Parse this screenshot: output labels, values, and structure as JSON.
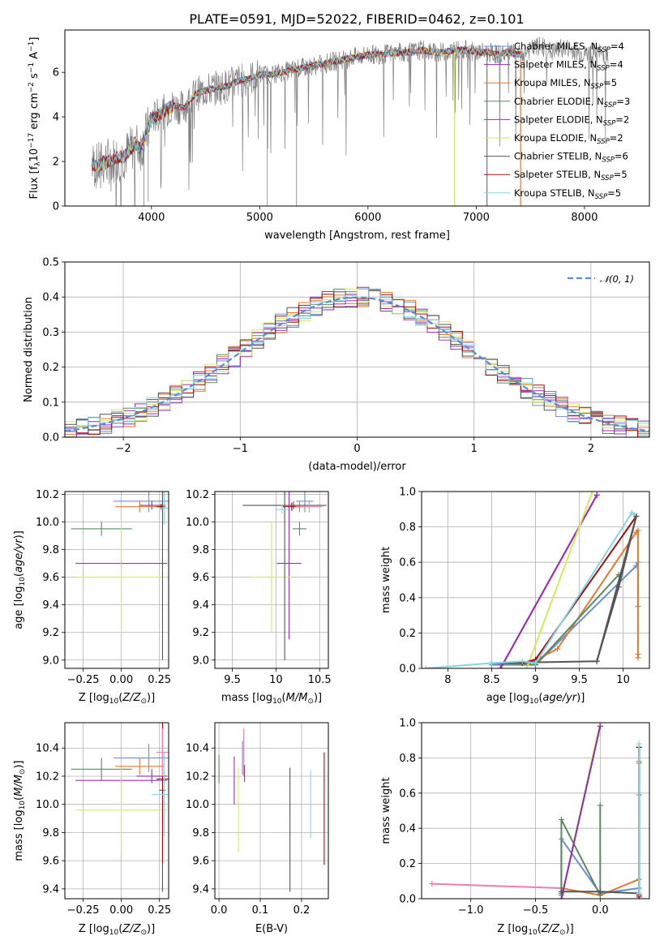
{
  "figure": {
    "title": "PLATE=0591, MJD=52022, FIBERID=0462, z=0.101"
  },
  "colors": {
    "Chabrier MILES": "#6a8fd8",
    "Salpeter MILES": "#8e2bb0",
    "Kroupa MILES": "#e07a30",
    "Chabrier ELODIE": "#5b8a60",
    "Salpeter ELODIE": "#9b2fb5",
    "Kroupa ELODIE": "#d6e85a",
    "Chabrier STELIB": "#555555",
    "Salpeter STELIB": "#a01010",
    "Kroupa STELIB": "#88d4e0",
    "gaussian": "#5b8ad6",
    "pink": "#e880b0",
    "grid": "#b0b0b0",
    "data": "#808080"
  },
  "chart_data": [
    {
      "type": "line",
      "id": "spectrum",
      "xlabel": "wavelength [Angstrom, rest frame]",
      "ylabel": "Flux [f_λ10^-17 erg cm^-2 s^-1 A^-1]",
      "xlim": [
        3200,
        8600
      ],
      "ylim": [
        0,
        7.9
      ],
      "xticks": [
        4000,
        5000,
        6000,
        7000,
        8000
      ],
      "yticks": [
        0,
        2,
        4,
        6
      ],
      "grid": false,
      "legend_position": "top-right",
      "continuum": {
        "x": [
          3450,
          3500,
          3550,
          3600,
          3650,
          3700,
          3750,
          3800,
          3850,
          3900,
          3950,
          4000,
          4100,
          4200,
          4300,
          4400,
          4500,
          4600,
          4700,
          4800,
          4900,
          5000,
          5100,
          5200,
          5300,
          5400,
          5500,
          5600,
          5700,
          5800,
          5900,
          6000,
          6100,
          6200,
          6300,
          6400,
          6500,
          6600,
          6700,
          6800,
          6900,
          7000,
          7100,
          7200,
          7300,
          7400
        ],
        "y": [
          1.9,
          1.75,
          1.95,
          2.0,
          2.1,
          2.2,
          2.25,
          2.5,
          2.8,
          2.6,
          3.2,
          3.9,
          4.2,
          4.5,
          4.4,
          5.0,
          5.2,
          5.3,
          5.4,
          5.6,
          5.7,
          5.9,
          5.9,
          6.0,
          6.1,
          6.2,
          6.3,
          6.4,
          6.5,
          6.6,
          6.7,
          6.8,
          6.8,
          6.85,
          6.9,
          6.9,
          7.0,
          6.9,
          6.9,
          7.0,
          7.0,
          6.9,
          6.9,
          6.8,
          6.9,
          6.8
        ]
      },
      "data_extra": {
        "x": [
          7400,
          7500,
          7600,
          7700,
          7800,
          7900,
          8000,
          8100,
          8200
        ],
        "y": [
          6.8,
          7.0,
          7.2,
          6.9,
          7.1,
          7.0,
          6.8,
          6.9,
          6.8
        ]
      },
      "legend": [
        {
          "name": "Chabrier MILES",
          "n_label": "N",
          "n_sub": "SSP",
          "n_value": "=4"
        },
        {
          "name": "Salpeter MILES",
          "n_label": "N",
          "n_sub": "SSP",
          "n_value": "=4"
        },
        {
          "name": "Kroupa MILES",
          "n_label": "N",
          "n_sub": "SSP",
          "n_value": "=5"
        },
        {
          "name": "Chabrier ELODIE",
          "n_label": "N",
          "n_sub": "SSP",
          "n_value": "=3"
        },
        {
          "name": "Salpeter ELODIE",
          "n_label": "N",
          "n_sub": "SSP",
          "n_value": "=2"
        },
        {
          "name": "Kroupa ELODIE",
          "n_label": "N",
          "n_sub": "SSP",
          "n_value": "=2"
        },
        {
          "name": "Chabrier STELIB",
          "n_label": "N",
          "n_sub": "SSP",
          "n_value": "=6"
        },
        {
          "name": "Salpeter STELIB",
          "n_label": "N",
          "n_sub": "SSP",
          "n_value": "=5"
        },
        {
          "name": "Kroupa STELIB",
          "n_label": "N",
          "n_sub": "SSP",
          "n_value": "=5"
        }
      ]
    },
    {
      "type": "line",
      "id": "residuals",
      "xlabel": "(data-model)/error",
      "ylabel": "Normed distribution",
      "xlim": [
        -2.5,
        2.5
      ],
      "ylim": [
        0,
        0.5
      ],
      "xticks": [
        -2,
        -1,
        0,
        1,
        2
      ],
      "yticks": [
        0.0,
        0.1,
        0.2,
        0.3,
        0.4,
        0.5
      ],
      "grid": true,
      "legend_position": "top-right",
      "legend": [
        {
          "name": "𝒩(0, 1)"
        }
      ],
      "bin_width": 0.1,
      "bins_start": -2.5,
      "series_noise_seeds": [
        1,
        2,
        3,
        4,
        5,
        6,
        7,
        8,
        9
      ]
    },
    {
      "type": "scatter",
      "id": "age-vs-Z",
      "xlabel": "Z [log10(Z/Z⊙)]",
      "ylabel": "age [log10(age/yr)]",
      "xlim": [
        -0.37,
        0.31
      ],
      "ylim": [
        8.94,
        10.22
      ],
      "xticks": [
        -0.25,
        0.0,
        0.25
      ],
      "yticks": [
        9.0,
        9.2,
        9.4,
        9.6,
        9.8,
        10.0,
        10.2
      ],
      "grid": true,
      "points": [
        {
          "model": "Chabrier MILES",
          "x": 0.18,
          "y": 10.15,
          "xerr": 0.23,
          "yerr": 0.08
        },
        {
          "model": "Salpeter MILES",
          "x": 0.2,
          "y": 10.12,
          "xerr": 0.08,
          "yerr": 0.03
        },
        {
          "model": "Kroupa MILES",
          "x": 0.12,
          "y": 10.11,
          "xerr": 0.16,
          "yerr": 0.04
        },
        {
          "model": "Chabrier ELODIE",
          "x": -0.13,
          "y": 9.95,
          "xerr": 0.2,
          "yerr": 0.05
        },
        {
          "model": "Salpeter ELODIE",
          "x": 0.0,
          "y": 9.7,
          "xerr": 0.3,
          "yerr": 0.02
        },
        {
          "model": "Kroupa ELODIE",
          "x": 0.0,
          "y": 9.6,
          "xerr": 0.3,
          "yerr": 0.42
        },
        {
          "model": "Chabrier STELIB",
          "x": 0.27,
          "y": 10.12,
          "xerr": 0.02,
          "yerr": 1.12
        },
        {
          "model": "Salpeter STELIB",
          "x": 0.26,
          "y": 10.11,
          "xerr": 0.03,
          "yerr": 0.02
        },
        {
          "model": "Kroupa STELIB",
          "x": 0.28,
          "y": 10.1,
          "xerr": 0.03,
          "yerr": 0.12
        }
      ]
    },
    {
      "type": "scatter",
      "id": "age-vs-mass",
      "xlabel": "mass [log10(M/M⊙)]",
      "ylabel": "",
      "xlim": [
        9.3,
        10.6
      ],
      "ylim": [
        8.94,
        10.22
      ],
      "xticks": [
        9.5,
        10.0,
        10.5
      ],
      "yticks": [
        9.0,
        9.2,
        9.4,
        9.6,
        9.8,
        10.0,
        10.2
      ],
      "grid": true,
      "points": [
        {
          "model": "Chabrier MILES",
          "x": 10.33,
          "y": 10.15,
          "xerr": 0.1,
          "yerr": 0.08
        },
        {
          "model": "Salpeter MILES",
          "x": 10.2,
          "y": 10.12,
          "xerr": 0.05,
          "yerr": 0.03
        },
        {
          "model": "Kroupa MILES",
          "x": 10.27,
          "y": 10.11,
          "xerr": 0.06,
          "yerr": 0.04
        },
        {
          "model": "Chabrier ELODIE",
          "x": 10.27,
          "y": 9.95,
          "xerr": 0.08,
          "yerr": 0.05
        },
        {
          "model": "Salpeter ELODIE",
          "x": 10.15,
          "y": 9.7,
          "xerr": 0.14,
          "yerr": 0.55
        },
        {
          "model": "Kroupa ELODIE",
          "x": 9.95,
          "y": 9.6,
          "xerr": 0.23,
          "yerr": 0.4
        },
        {
          "model": "Chabrier STELIB",
          "x": 10.1,
          "y": 10.12,
          "xerr": 0.48,
          "yerr": 1.12
        },
        {
          "model": "Salpeter STELIB",
          "x": 10.18,
          "y": 10.11,
          "xerr": 0.1,
          "yerr": 0.03
        },
        {
          "model": "Kroupa STELIB",
          "x": 10.07,
          "y": 10.09,
          "xerr": 0.07,
          "yerr": 0.03
        },
        {
          "model": "pink",
          "x": 10.38,
          "y": 10.11,
          "xerr": 0.15,
          "yerr": 0.04
        }
      ]
    },
    {
      "type": "line",
      "id": "massweight-vs-age",
      "xlabel": "age [log10(age/yr)]",
      "ylabel": "mass weight",
      "xlim": [
        7.7,
        10.3
      ],
      "ylim": [
        0,
        1.0
      ],
      "xticks": [
        8.0,
        8.5,
        9.0,
        9.5,
        10.0
      ],
      "yticks": [
        0.0,
        0.2,
        0.4,
        0.6,
        0.8,
        1.0
      ],
      "grid": true,
      "series": [
        {
          "name": "Chabrier MILES",
          "x": [
            8.5,
            9.0,
            10.15,
            10.17,
            10.17
          ],
          "y": [
            0.02,
            0.02,
            0.58,
            0.6,
            0.35
          ]
        },
        {
          "name": "Salpeter MILES",
          "x": [
            8.6,
            9.7
          ],
          "y": [
            0.0,
            0.98
          ]
        },
        {
          "name": "Kroupa MILES",
          "x": [
            8.9,
            9.25,
            10.15,
            10.17,
            10.17,
            10.17
          ],
          "y": [
            0.02,
            0.11,
            0.77,
            0.78,
            0.08,
            0.06
          ]
        },
        {
          "name": "Chabrier ELODIE",
          "x": [
            8.5,
            9.0,
            9.95
          ],
          "y": [
            0.03,
            0.02,
            0.53
          ]
        },
        {
          "name": "Salpeter ELODIE",
          "x": [
            8.6,
            9.7
          ],
          "y": [
            0.0,
            0.98
          ]
        },
        {
          "name": "Kroupa ELODIE",
          "x": [
            8.9,
            9.65
          ],
          "y": [
            0.0,
            1.0
          ]
        },
        {
          "name": "Chabrier STELIB",
          "x": [
            8.5,
            9.7,
            10.15
          ],
          "y": [
            0.03,
            0.04,
            0.86
          ]
        },
        {
          "name": "Salpeter STELIB",
          "x": [
            8.85,
            9.0,
            10.15
          ],
          "y": [
            0.03,
            0.05,
            0.86
          ]
        },
        {
          "name": "Kroupa STELIB",
          "x": [
            7.75,
            8.5,
            8.85,
            9.0,
            10.1,
            10.13
          ],
          "y": [
            0.0,
            0.03,
            0.04,
            0.03,
            0.88,
            0.87
          ]
        },
        {
          "name": "Chabrier STELIB b",
          "x": [
            9.7,
            9.95,
            10.15
          ],
          "y": [
            0.04,
            0.46,
            0.86
          ]
        }
      ]
    },
    {
      "type": "scatter",
      "id": "mass-vs-Z",
      "xlabel": "Z [log10(Z/Z⊙)]",
      "ylabel": "mass [log10(M/M⊙)]",
      "xlim": [
        -0.37,
        0.31
      ],
      "ylim": [
        9.33,
        10.58
      ],
      "xticks": [
        -0.25,
        0.0,
        0.25
      ],
      "yticks": [
        9.4,
        9.6,
        9.8,
        10.0,
        10.2,
        10.4
      ],
      "grid": true,
      "points": [
        {
          "model": "Chabrier MILES",
          "x": 0.18,
          "y": 10.33,
          "xerr": 0.23,
          "yerr": 0.1
        },
        {
          "model": "Salpeter MILES",
          "x": 0.2,
          "y": 10.2,
          "xerr": 0.1,
          "yerr": 0.05
        },
        {
          "model": "Kroupa MILES",
          "x": 0.12,
          "y": 10.27,
          "xerr": 0.16,
          "yerr": 0.06
        },
        {
          "model": "Chabrier ELODIE",
          "x": -0.13,
          "y": 10.25,
          "xerr": 0.2,
          "yerr": 0.08
        },
        {
          "model": "Salpeter ELODIE",
          "x": 0.0,
          "y": 10.17,
          "xerr": 0.3,
          "yerr": 0.02
        },
        {
          "model": "Kroupa ELODIE",
          "x": 0.0,
          "y": 9.96,
          "xerr": 0.3,
          "yerr": 0.3
        },
        {
          "model": "Chabrier STELIB",
          "x": 0.27,
          "y": 10.1,
          "xerr": 0.02,
          "yerr": 0.72
        },
        {
          "model": "Salpeter STELIB",
          "x": 0.27,
          "y": 10.18,
          "xerr": 0.04,
          "yerr": 0.6
        },
        {
          "model": "Kroupa STELIB",
          "x": 0.28,
          "y": 10.07,
          "xerr": 0.08,
          "yerr": 0.3
        },
        {
          "model": "pink",
          "x": 0.27,
          "y": 10.37,
          "xerr": 0.04,
          "yerr": 0.17
        }
      ]
    },
    {
      "type": "scatter",
      "id": "mass-vs-EBV",
      "xlabel": "E(B-V)",
      "ylabel": "",
      "xlim": [
        -0.01,
        0.265
      ],
      "ylim": [
        9.33,
        10.58
      ],
      "xticks": [
        0.0,
        0.1,
        0.2
      ],
      "yticks": [
        9.4,
        9.6,
        9.8,
        10.0,
        10.2,
        10.4
      ],
      "grid": true,
      "points": [
        {
          "model": "Chabrier ELODIE",
          "x": 0.0,
          "y": 10.25,
          "yerr": 0.1
        },
        {
          "model": "Salpeter ELODIE",
          "x": 0.037,
          "y": 10.17,
          "yerr": 0.17
        },
        {
          "model": "Kroupa ELODIE",
          "x": 0.047,
          "y": 9.96,
          "yerr": 0.3
        },
        {
          "model": "Chabrier MILES",
          "x": 0.057,
          "y": 10.33,
          "yerr": 0.12
        },
        {
          "model": "pink",
          "x": 0.06,
          "y": 10.37,
          "yerr": 0.17
        },
        {
          "model": "Salpeter MILES",
          "x": 0.062,
          "y": 10.22,
          "yerr": 0.06
        },
        {
          "model": "Chabrier STELIB",
          "x": 0.172,
          "y": 9.82,
          "yerr": 0.44
        },
        {
          "model": "Kroupa STELIB",
          "x": 0.222,
          "y": 10.0,
          "yerr": 0.24
        },
        {
          "model": "Salpeter STELIB",
          "x": 0.255,
          "y": 9.97,
          "yerr": 0.4
        }
      ]
    },
    {
      "type": "line",
      "id": "massweight-vs-Z",
      "xlabel": "Z [log10(Z/Z⊙)]",
      "ylabel": "mass weight",
      "xlim": [
        -1.38,
        0.38
      ],
      "ylim": [
        0,
        1.0
      ],
      "xticks": [
        -1.0,
        -0.5,
        0.0
      ],
      "yticks": [
        0.0,
        0.2,
        0.4,
        0.6,
        0.8,
        1.0
      ],
      "grid": true,
      "series": [
        {
          "name": "pink",
          "x": [
            -1.3,
            -0.3
          ],
          "y": [
            0.085,
            0.06
          ]
        },
        {
          "name": "Chabrier MILES",
          "x": [
            -0.3,
            -0.3,
            0.0,
            0.3,
            0.3,
            0.3
          ],
          "y": [
            0.02,
            0.34,
            0.03,
            0.06,
            0.59,
            0.86
          ]
        },
        {
          "name": "Kroupa MILES",
          "x": [
            -0.3,
            0.0,
            0.3,
            0.3,
            0.3
          ],
          "y": [
            0.06,
            0.02,
            0.11,
            0.77,
            0.78
          ]
        },
        {
          "name": "Chabrier ELODIE",
          "x": [
            -0.3,
            -0.3,
            0.0,
            0.0
          ],
          "y": [
            0.03,
            0.45,
            0.02,
            0.53
          ]
        },
        {
          "name": "Kroupa ELODIE",
          "x": [
            -0.3,
            0.0,
            0.0
          ],
          "y": [
            0.0,
            1.0,
            0.98
          ]
        },
        {
          "name": "Salpeter MILES",
          "x": [
            -0.3,
            0.0
          ],
          "y": [
            0.0,
            0.98
          ]
        },
        {
          "name": "Chabrier STELIB",
          "x": [
            -0.3,
            0.0,
            0.3,
            0.3
          ],
          "y": [
            0.04,
            0.04,
            0.03,
            0.86
          ]
        },
        {
          "name": "Salpeter STELIB",
          "x": [
            0.3,
            0.3,
            0.3
          ],
          "y": [
            0.02,
            0.86,
            0.01
          ]
        },
        {
          "name": "Kroupa STELIB",
          "x": [
            0.3,
            0.3
          ],
          "y": [
            0.03,
            0.88
          ]
        }
      ]
    }
  ]
}
